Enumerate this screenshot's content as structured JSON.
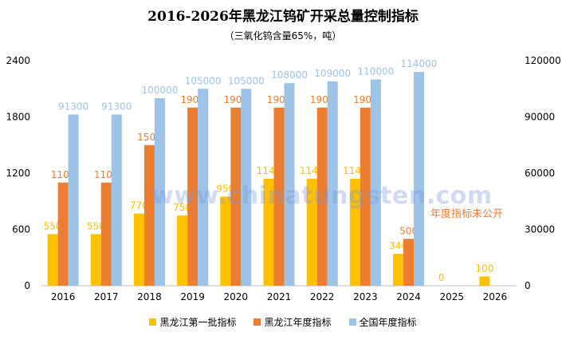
{
  "title": "2016-2026年黑龙江钨矿开采总量控制指标",
  "subtitle": "（三氧化钨含量65%，吨）",
  "note": "年度指标未公开",
  "watermark": "www.chinatungsten.com",
  "chart_data": {
    "type": "bar",
    "categories": [
      "2016",
      "2017",
      "2018",
      "2019",
      "2020",
      "2021",
      "2022",
      "2023",
      "2024",
      "2025",
      "2026"
    ],
    "series": [
      {
        "name": "黑龙江第一批指标",
        "axis": "left",
        "color": "#FFC000",
        "label_color": "#FFC000",
        "values": [
          550,
          550,
          770,
          750,
          950,
          1140,
          1140,
          1140,
          340,
          0,
          100
        ],
        "labels": [
          "550",
          "550",
          "770",
          "750",
          "950",
          "1140",
          "1140",
          "1140",
          "340",
          "0",
          "100"
        ]
      },
      {
        "name": "黑龙江年度指标",
        "axis": "left",
        "color": "#ED7D31",
        "label_color": "#ED7D31",
        "values": [
          1100,
          1100,
          1500,
          1900,
          1900,
          1900,
          1900,
          1900,
          500,
          null,
          null
        ],
        "labels": [
          "1100",
          "1100",
          "1500",
          "1900",
          "1900",
          "1900",
          "1900",
          "1900",
          "500",
          "",
          ""
        ]
      },
      {
        "name": "全国年度指标",
        "axis": "right",
        "color": "#9DC3E6",
        "label_color": "#9DC3E6",
        "values": [
          91300,
          91300,
          100000,
          105000,
          105000,
          108000,
          109000,
          110000,
          114000,
          null,
          null
        ],
        "labels": [
          "91300",
          "91300",
          "100000",
          "105000",
          "105000",
          "108000",
          "109000",
          "110000",
          "114000",
          "",
          ""
        ]
      }
    ],
    "y_left": {
      "min": 0,
      "max": 2400,
      "ticks": [
        "0",
        "600",
        "1200",
        "1800",
        "2400"
      ]
    },
    "y_right": {
      "min": 0,
      "max": 120000,
      "ticks": [
        "0",
        "30000",
        "60000",
        "90000",
        "120000"
      ]
    },
    "grid": false,
    "legend_position": "bottom"
  }
}
